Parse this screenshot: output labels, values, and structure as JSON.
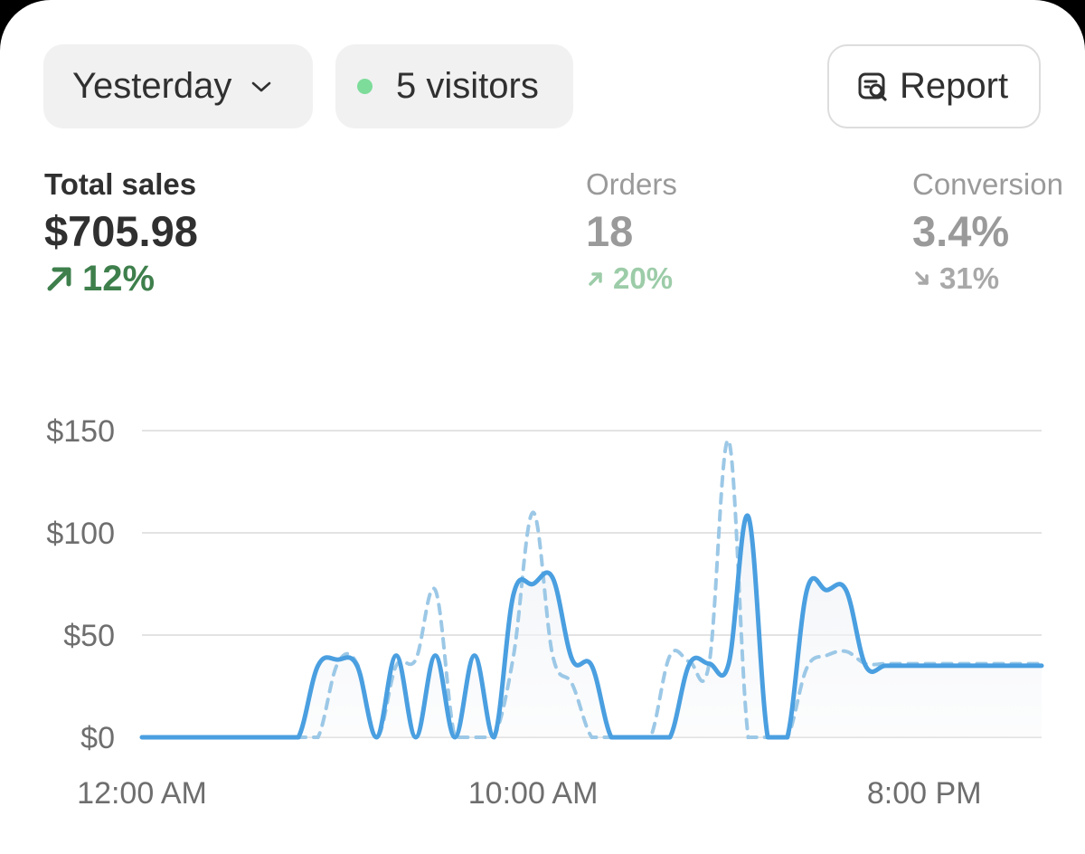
{
  "filters": {
    "date_label": "Yesterday",
    "visitors_label": "5 visitors",
    "report_label": "Report"
  },
  "metrics": [
    {
      "label": "Total sales",
      "value": "$705.98",
      "delta": "12%",
      "direction": "up"
    },
    {
      "label": "Orders",
      "value": "18",
      "delta": "20%",
      "direction": "up"
    },
    {
      "label": "Conversion",
      "value": "3.4%",
      "delta": "31%",
      "direction": "down"
    }
  ],
  "colors": {
    "current_line": "#4a9fe0",
    "previous_line": "#9cc8e6",
    "positive": "#3e7f4c",
    "live_dot": "#7ddc9a",
    "grid": "#e3e3e3"
  },
  "chart_data": {
    "type": "line",
    "title": "",
    "xlabel": "",
    "ylabel": "",
    "ylim": [
      0,
      150
    ],
    "y_ticks": [
      0,
      50,
      100,
      150
    ],
    "y_tick_labels": [
      "$0",
      "$50",
      "$100",
      "$150"
    ],
    "x": [
      0,
      0.5,
      1,
      1.5,
      2,
      2.5,
      3,
      3.5,
      4,
      4.5,
      5,
      5.5,
      6,
      6.5,
      7,
      7.5,
      8,
      8.5,
      9,
      9.5,
      10,
      10.5,
      11,
      11.5,
      12,
      12.5,
      13,
      13.5,
      14,
      14.5,
      15,
      15.5,
      16,
      16.5,
      17,
      17.5,
      18,
      18.5,
      19,
      19.5,
      20,
      20.5,
      21,
      21.5,
      22,
      22.5,
      23
    ],
    "x_ticks": [
      0,
      10,
      20
    ],
    "x_tick_labels": [
      "12:00 AM",
      "10:00 AM",
      "8:00 PM"
    ],
    "series": [
      {
        "style": "solid",
        "values": [
          0,
          0,
          0,
          0,
          0,
          0,
          0,
          0,
          0,
          35,
          38,
          35,
          0,
          40,
          0,
          40,
          0,
          40,
          0,
          70,
          75,
          78,
          38,
          35,
          0,
          0,
          0,
          0,
          36,
          36,
          36,
          108,
          0,
          0,
          72,
          72,
          72,
          35,
          35,
          35,
          35,
          35,
          35,
          35,
          35,
          35,
          35
        ]
      },
      {
        "style": "dashed",
        "values": [
          0,
          0,
          0,
          0,
          0,
          0,
          0,
          0,
          0,
          0,
          36,
          36,
          0,
          35,
          38,
          72,
          0,
          0,
          0,
          40,
          110,
          40,
          26,
          0,
          0,
          0,
          0,
          40,
          37,
          36,
          145,
          0,
          0,
          0,
          34,
          40,
          42,
          36,
          36,
          36,
          36,
          36,
          36,
          36,
          36,
          36,
          36
        ]
      }
    ]
  }
}
